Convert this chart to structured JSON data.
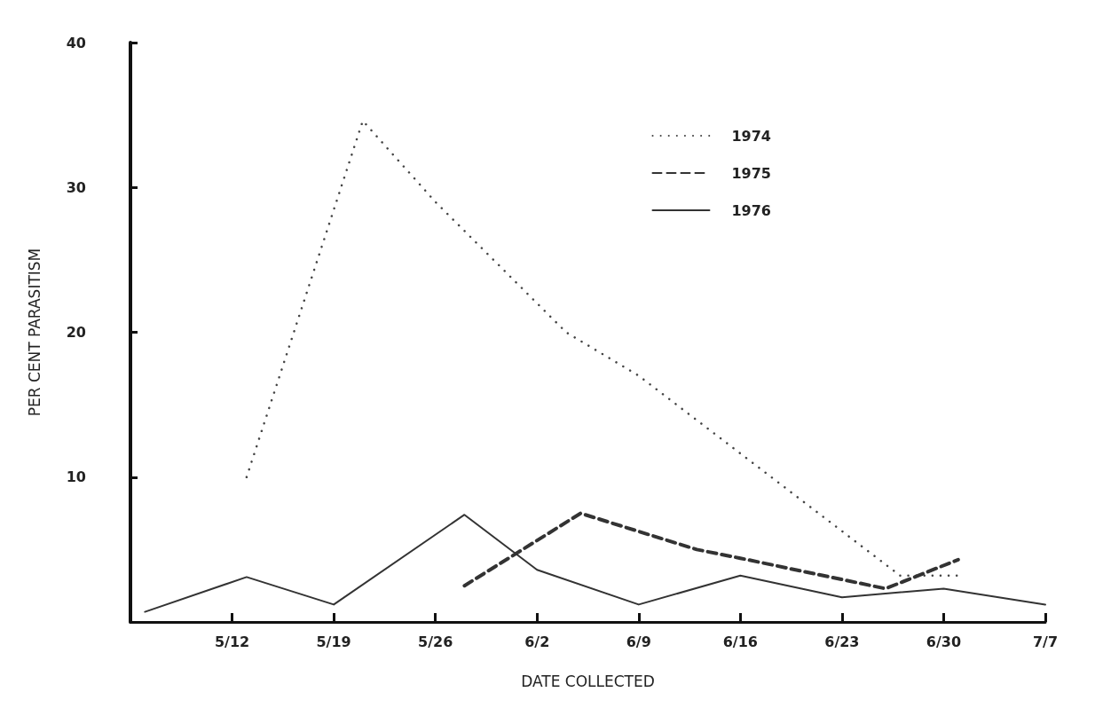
{
  "chart_data": {
    "type": "line",
    "xlabel": "DATE COLLECTED",
    "ylabel": "PER CENT PARASITISM",
    "xlim": [
      "--05-05",
      "--07-07"
    ],
    "xticks": [
      {
        "value": "--05-12",
        "label": "5/12"
      },
      {
        "value": "--05-19",
        "label": "5/19"
      },
      {
        "value": "--05-26",
        "label": "5/26"
      },
      {
        "value": "--06-02",
        "label": "6/2"
      },
      {
        "value": "--06-09",
        "label": "6/9"
      },
      {
        "value": "--06-16",
        "label": "6/16"
      },
      {
        "value": "--06-23",
        "label": "6/23"
      },
      {
        "value": "--06-30",
        "label": "6/30"
      },
      {
        "value": "--07-07",
        "label": "7/7"
      }
    ],
    "ylim": [
      0,
      40
    ],
    "yticks": [
      10,
      20,
      30,
      40
    ],
    "grid": false,
    "legend": "top right",
    "marker": "none",
    "series": [
      {
        "name": "1974",
        "color": "#444444",
        "line_style": "dotted",
        "x": [
          "--05-13",
          "--05-21",
          "--05-26",
          "--06-04",
          "--06-09",
          "--06-27",
          "--07-01"
        ],
        "values": [
          10,
          34.6,
          29,
          20,
          17,
          3.2,
          3.2
        ]
      },
      {
        "name": "1975",
        "color": "#333333",
        "line_style": "dashed",
        "x": [
          "--05-28",
          "--06-05",
          "--06-13",
          "--06-16",
          "--06-26",
          "--07-01"
        ],
        "values": [
          2.5,
          7.5,
          5,
          4.4,
          2.3,
          4.3
        ]
      },
      {
        "name": "1976",
        "color": "#333333",
        "line_style": "solid",
        "x": [
          "--05-06",
          "--05-13",
          "--05-19",
          "--05-28",
          "--06-02",
          "--06-09",
          "--06-16",
          "--06-23",
          "--06-30",
          "--07-07"
        ],
        "values": [
          0.7,
          3.1,
          1.2,
          7.4,
          3.6,
          1.2,
          3.2,
          1.7,
          2.3,
          1.2
        ]
      }
    ]
  }
}
